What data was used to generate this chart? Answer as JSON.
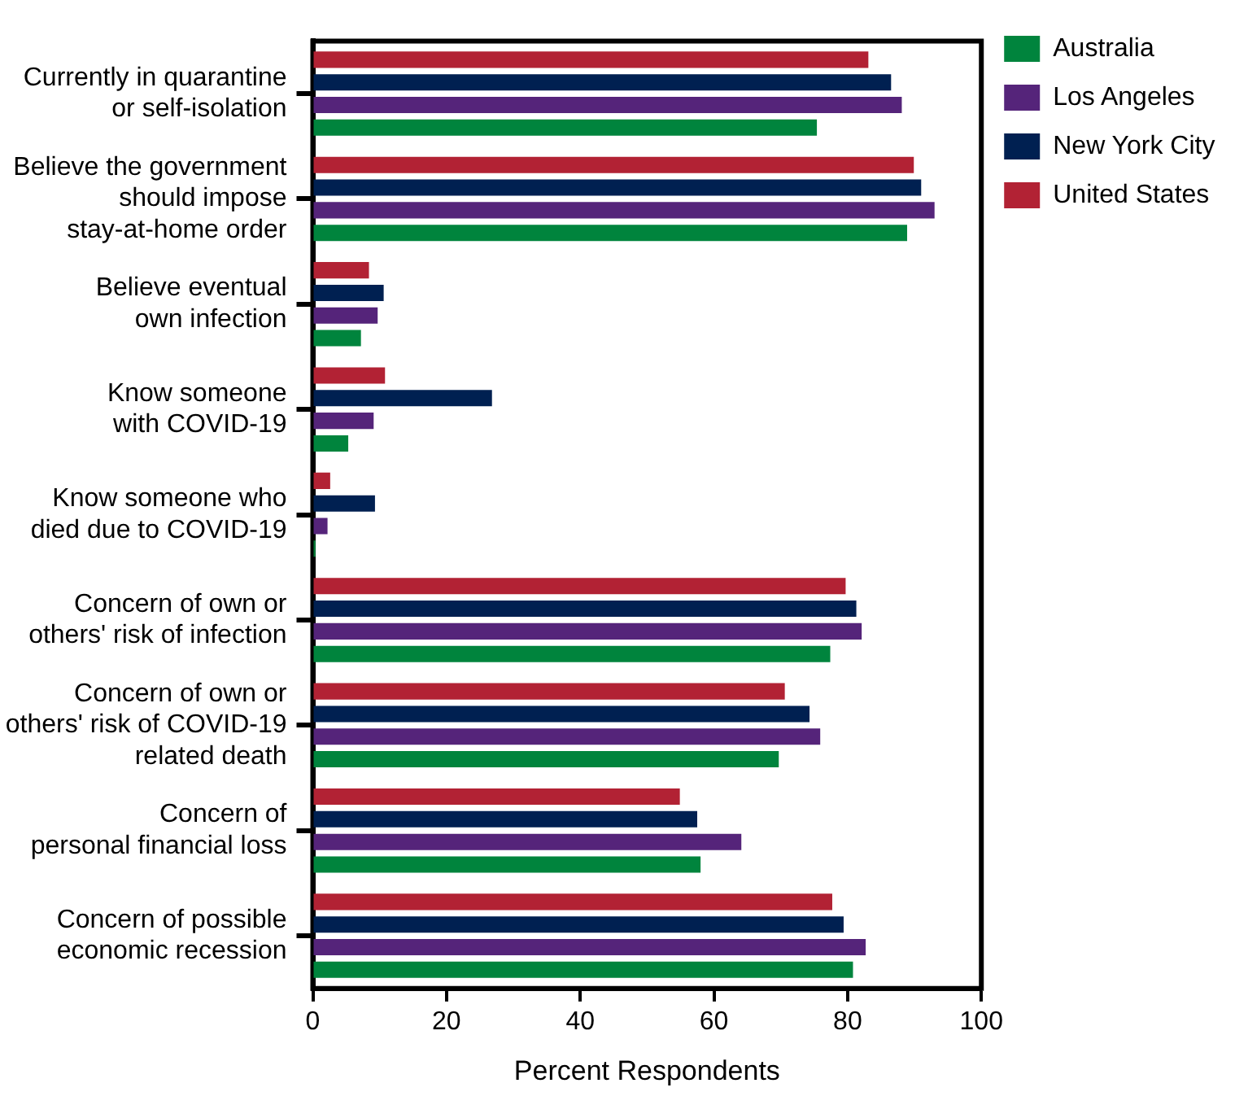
{
  "chart_data": {
    "type": "bar",
    "orientation": "horizontal",
    "xlabel": "Percent Respondents",
    "categories": [
      "Currently in quarantine\nor self-isolation",
      "Believe the government\nshould impose\nstay-at-home order",
      "Believe eventual\nown infection",
      "Know someone\nwith COVID-19",
      "Know someone who\ndied due to COVID-19",
      "Concern of own or\nothers' risk of infection",
      "Concern of own or\nothers' risk of COVID-19\nrelated death",
      "Concern of\npersonal financial loss",
      "Concern of possible\neconomic recession"
    ],
    "series": [
      {
        "name": "Australia",
        "color": "#00843d",
        "values": [
          75.4,
          88.9,
          7.2,
          5.3,
          0.4,
          77.4,
          69.7,
          58.0,
          80.8
        ]
      },
      {
        "name": "Los Angeles",
        "color": "#55247a",
        "values": [
          88.1,
          93.0,
          9.7,
          9.1,
          2.2,
          82.1,
          75.9,
          64.1,
          82.7
        ]
      },
      {
        "name": "New York City",
        "color": "#002051",
        "values": [
          86.5,
          91.0,
          10.6,
          26.8,
          9.3,
          81.3,
          74.3,
          57.5,
          79.4
        ]
      },
      {
        "name": "United States",
        "color": "#b22234",
        "values": [
          83.1,
          89.9,
          8.4,
          10.8,
          2.6,
          79.7,
          70.6,
          54.9,
          77.7
        ]
      }
    ],
    "xlim": [
      0,
      100
    ],
    "xticks": [
      0,
      20,
      40,
      60,
      80,
      100
    ],
    "grid": false,
    "legend": "top right"
  }
}
